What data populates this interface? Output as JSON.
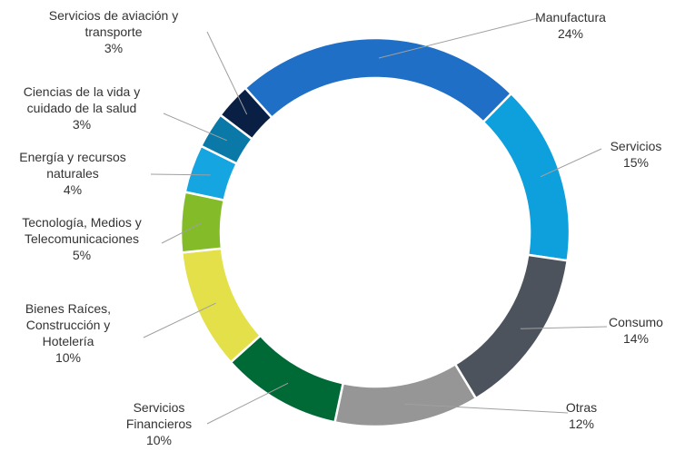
{
  "chart_data": {
    "type": "donut",
    "categories": [
      "Manufactura",
      "Servicios",
      "Consumo",
      "Otras",
      "Servicios Financieros",
      "Bienes Raíces, Construcción y Hotelería",
      "Tecnología, Medios y Telecomunicaciones",
      "Energía y recursos naturales",
      "Ciencias de la vida y cuidado de la salud",
      "Servicios de aviación y transporte"
    ],
    "values": [
      24,
      15,
      14,
      12,
      10,
      10,
      5,
      4,
      3,
      3
    ],
    "value_labels": [
      "24%",
      "15%",
      "14%",
      "12%",
      "10%",
      "10%",
      "5%",
      "4%",
      "3%",
      "3%"
    ],
    "colors": [
      "#1f6fc6",
      "#0ea0dc",
      "#4d535c",
      "#969696",
      "#006a36",
      "#e3e04a",
      "#84bb28",
      "#15a5e0",
      "#0a79a8",
      "#0a1f44"
    ]
  }
}
